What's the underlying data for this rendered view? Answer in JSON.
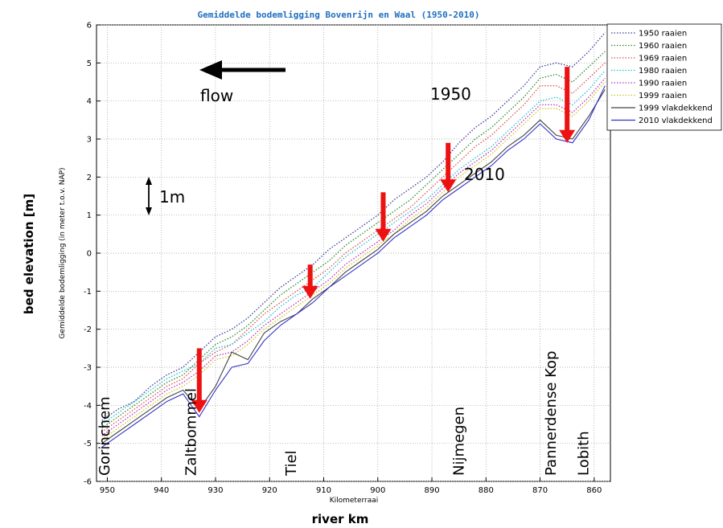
{
  "chart_data": {
    "type": "line",
    "title": "Gemiddelde bodemligging Bovenrijn en Waal (1950-2010)",
    "xlabel": "Kilometerraai",
    "ylabel": "Gemiddelde bodemligging (in meter t.o.v. NAP)",
    "outer_xlabel": "river km",
    "outer_ylabel": "bed elevation [m]",
    "xlim": [
      952,
      857
    ],
    "ylim": [
      -6,
      6
    ],
    "x_reversed": true,
    "grid": true,
    "legend_position": "outside-right-top",
    "xticks": [
      "950",
      "940",
      "930",
      "920",
      "910",
      "900",
      "890",
      "880",
      "870",
      "860"
    ],
    "yticks": [
      "6",
      "5",
      "4",
      "3",
      "2",
      "1",
      "0",
      "-1",
      "-2",
      "-3",
      "-4",
      "-5",
      "-6"
    ],
    "x": [
      951,
      948,
      945,
      942,
      939,
      936,
      933,
      930,
      927,
      924,
      921,
      918,
      915,
      912,
      909,
      906,
      903,
      900,
      897,
      894,
      891,
      888,
      885,
      882,
      879,
      876,
      873,
      870,
      867,
      864,
      861,
      858
    ],
    "series": [
      {
        "name": "1950 raaien",
        "color": "#3a3a9a",
        "dash": "1.5,2",
        "values": [
          -4.4,
          -4.1,
          -3.9,
          -3.5,
          -3.2,
          -3.0,
          -2.6,
          -2.2,
          -2.0,
          -1.7,
          -1.3,
          -0.9,
          -0.6,
          -0.3,
          0.1,
          0.4,
          0.7,
          1.0,
          1.4,
          1.7,
          2.0,
          2.4,
          2.9,
          3.3,
          3.6,
          4.0,
          4.4,
          4.9,
          5.0,
          4.9,
          5.3,
          5.8
        ]
      },
      {
        "name": "1960 raaien",
        "color": "#2a8a2a",
        "dash": "1.5,2",
        "values": [
          -4.6,
          -4.3,
          -4.0,
          -3.7,
          -3.4,
          -3.2,
          -2.8,
          -2.4,
          -2.2,
          -1.9,
          -1.5,
          -1.1,
          -0.8,
          -0.5,
          -0.2,
          0.2,
          0.5,
          0.8,
          1.1,
          1.4,
          1.8,
          2.2,
          2.6,
          3.0,
          3.3,
          3.7,
          4.1,
          4.6,
          4.7,
          4.5,
          4.9,
          5.3
        ]
      },
      {
        "name": "1969 raaien",
        "color": "#e05050",
        "dash": "1.5,2",
        "values": [
          -4.7,
          -4.4,
          -4.1,
          -3.8,
          -3.5,
          -3.3,
          -2.9,
          -2.6,
          -2.4,
          -2.0,
          -1.6,
          -1.3,
          -1.0,
          -0.7,
          -0.4,
          0.0,
          0.3,
          0.6,
          0.9,
          1.2,
          1.6,
          2.0,
          2.4,
          2.8,
          3.1,
          3.5,
          3.9,
          4.4,
          4.4,
          4.2,
          4.6,
          5.0
        ]
      },
      {
        "name": "1980 raaien",
        "color": "#20c0d0",
        "dash": "1.5,2",
        "values": [
          -4.5,
          -4.2,
          -3.9,
          -3.6,
          -3.3,
          -3.1,
          -2.9,
          -2.5,
          -2.4,
          -2.1,
          -1.8,
          -1.4,
          -1.1,
          -0.9,
          -0.5,
          -0.1,
          0.2,
          0.5,
          0.8,
          1.1,
          1.4,
          1.8,
          2.2,
          2.5,
          2.8,
          3.2,
          3.6,
          4.0,
          4.1,
          3.9,
          4.3,
          4.8
        ]
      },
      {
        "name": "1990 raaien",
        "color": "#c030c0",
        "dash": "1.5,2",
        "values": [
          -4.8,
          -4.5,
          -4.2,
          -3.9,
          -3.6,
          -3.4,
          -3.1,
          -2.7,
          -2.6,
          -2.3,
          -1.9,
          -1.6,
          -1.3,
          -1.0,
          -0.7,
          -0.3,
          0.0,
          0.3,
          0.6,
          1.0,
          1.3,
          1.7,
          2.1,
          2.4,
          2.7,
          3.1,
          3.5,
          3.9,
          3.9,
          3.7,
          4.1,
          4.6
        ]
      },
      {
        "name": "1999 raaien",
        "color": "#c8c820",
        "dash": "1.5,2",
        "values": [
          -4.9,
          -4.6,
          -4.3,
          -4.0,
          -3.7,
          -3.5,
          -3.2,
          -2.8,
          -2.7,
          -2.4,
          -2.0,
          -1.7,
          -1.4,
          -1.1,
          -0.8,
          -0.4,
          -0.1,
          0.2,
          0.5,
          0.9,
          1.2,
          1.6,
          2.0,
          2.3,
          2.6,
          3.0,
          3.4,
          3.8,
          3.8,
          3.6,
          4.0,
          4.5
        ]
      },
      {
        "name": "1999 vlakdekkend",
        "color": "#444444",
        "dash": "",
        "values": [
          -5.0,
          -4.7,
          -4.4,
          -4.1,
          -3.8,
          -3.6,
          -4.1,
          -3.5,
          -2.6,
          -2.8,
          -2.1,
          -1.8,
          -1.6,
          -1.2,
          -0.9,
          -0.5,
          -0.2,
          0.1,
          0.5,
          0.8,
          1.1,
          1.5,
          1.8,
          2.1,
          2.4,
          2.8,
          3.1,
          3.5,
          3.1,
          3.0,
          3.6,
          4.3
        ]
      },
      {
        "name": "2010 vlakdekkend",
        "color": "#3333cc",
        "dash": "",
        "values": [
          -5.1,
          -4.8,
          -4.5,
          -4.2,
          -3.9,
          -3.7,
          -4.3,
          -3.6,
          -3.0,
          -2.9,
          -2.3,
          -1.9,
          -1.6,
          -1.3,
          -0.9,
          -0.6,
          -0.3,
          0.0,
          0.4,
          0.7,
          1.0,
          1.4,
          1.7,
          2.0,
          2.3,
          2.7,
          3.0,
          3.4,
          3.0,
          2.9,
          3.5,
          4.4
        ]
      }
    ],
    "flow_label": "flow",
    "scale_label": "1m",
    "year_label_top": "1950",
    "year_label_bottom": "2010",
    "places": [
      {
        "name": "Gorinchem",
        "km": 950.5
      },
      {
        "name": "Zaltbommel",
        "km": 934.5
      },
      {
        "name": "Tiel",
        "km": 916
      },
      {
        "name": "Nijmegen",
        "km": 885
      },
      {
        "name": "Pannerdense Kop",
        "km": 868
      },
      {
        "name": "Lobith",
        "km": 862
      }
    ],
    "arrows": [
      {
        "km": 933.0,
        "from": -2.5,
        "to": -4.2
      },
      {
        "km": 912.5,
        "from": -0.3,
        "to": -1.2
      },
      {
        "km": 899.0,
        "from": 1.6,
        "to": 0.3
      },
      {
        "km": 887.0,
        "from": 2.9,
        "to": 1.6
      },
      {
        "km": 865.0,
        "from": 4.9,
        "to": 2.9
      }
    ],
    "arrow_color": "#ee1111"
  }
}
